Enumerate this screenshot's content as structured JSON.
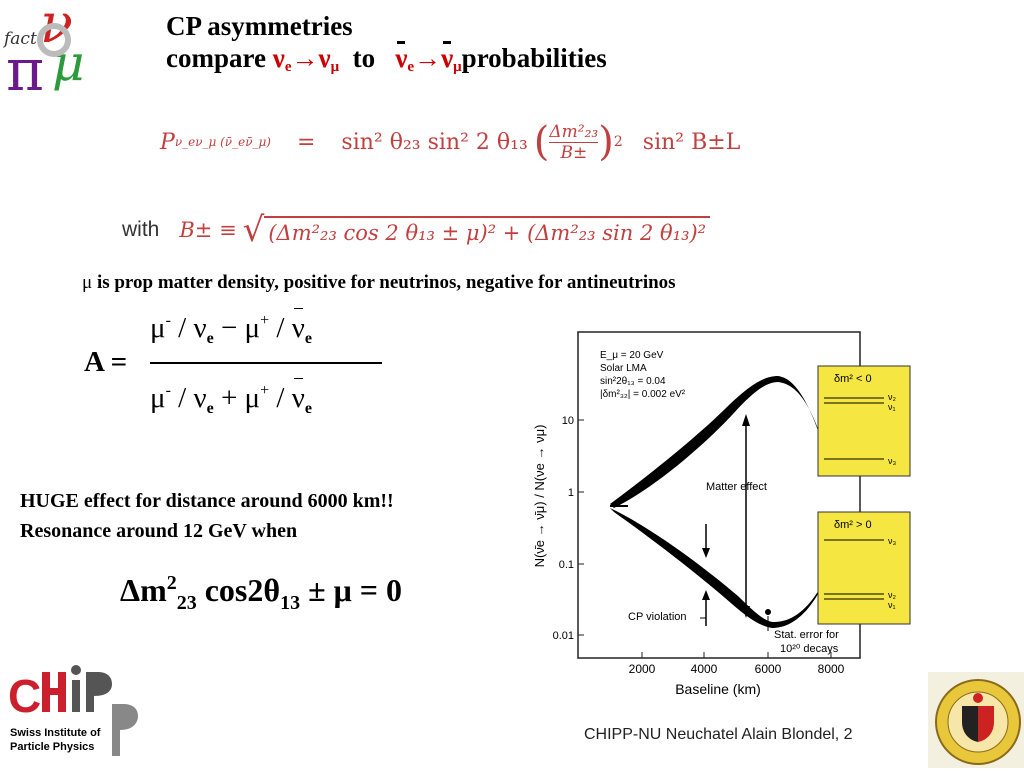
{
  "slide": {
    "title_line1": "CP   asymmetries",
    "title_line2_prefix": "compare ",
    "title_line2_mid": "to",
    "title_line2_suffix": "probabilities",
    "nu": "ν",
    "arrow": "→",
    "sub_e": "e",
    "sub_mu": "μ"
  },
  "eq1": {
    "lhs": "P",
    "lhs_sub": "ν_eν_μ (ν̄_eν̄_μ)",
    "eq": "=",
    "rhs_a": "sin² θ₂₃ sin² 2 θ₁₃",
    "frac_num": "Δm²₂₃",
    "frac_den": "B±",
    "power": "2",
    "rhs_b": "sin² B±L"
  },
  "eq2": {
    "with": "with",
    "lhs": "B± ≡",
    "inside": "(Δm²₂₃ cos 2 θ₁₃ ± μ)² + (Δm²₂₃ sin 2 θ₁₃)²"
  },
  "mu_note": {
    "mu": "μ",
    "text": " is prop matter density, positive for neutrinos, negative for antineutrinos"
  },
  "asym": {
    "A": "A =",
    "mu": "μ",
    "minus_sup": "-",
    "plus_sup": "+",
    "slash": " / ",
    "nu": "ν",
    "e": "e",
    "minus_op": " − ",
    "plus_op": " + "
  },
  "notes": {
    "line1": "HUGE effect for distance around 6000 km!!",
    "line2": "Resonance around 12 GeV when"
  },
  "resonance": {
    "dm": "Δm",
    "sup2": "2",
    "sub23": "23",
    "cos": " cos2θ",
    "sub13": "13",
    "rest": " ± μ = 0"
  },
  "plot": {
    "params": [
      "E_μ = 20 GeV",
      "Solar LMA",
      "sin²2θ₁₃ = 0.04",
      "|δm²₃₂| = 0.002 eV²"
    ],
    "ylabel": "N(ν̄e → ν̄μ) / N(νe → νμ)",
    "xlabel": "Baseline  (km)",
    "x_ticks": [
      "2000",
      "4000",
      "6000",
      "8000"
    ],
    "y_ticks": [
      "10",
      "1",
      "0.1",
      "0.01"
    ],
    "matter_effect": "Matter effect",
    "cp_violation": "CP violation",
    "stat_error_1": "Stat. error for",
    "stat_error_2": "10²⁰ decays",
    "box1_title": "δm² < 0",
    "box1_levels": [
      "ν₂",
      "ν₁",
      "ν₃"
    ],
    "box2_title": "δm² > 0",
    "box2_levels": [
      "ν₃",
      "ν₂",
      "ν₁"
    ]
  },
  "footer": "CHIPP-NU Neuchatel   Alain Blondel, 2",
  "logos": {
    "nufact": "fact",
    "chipp_line1": "Swiss Institute of",
    "chipp_line2": "Particle Physics",
    "geneve": "SCHOLA GENEVENSIS"
  },
  "colors": {
    "red": "#cc0000",
    "formula": "#c04040",
    "box_yellow": "#f5e642",
    "chipp_red": "#cc1f2d"
  }
}
